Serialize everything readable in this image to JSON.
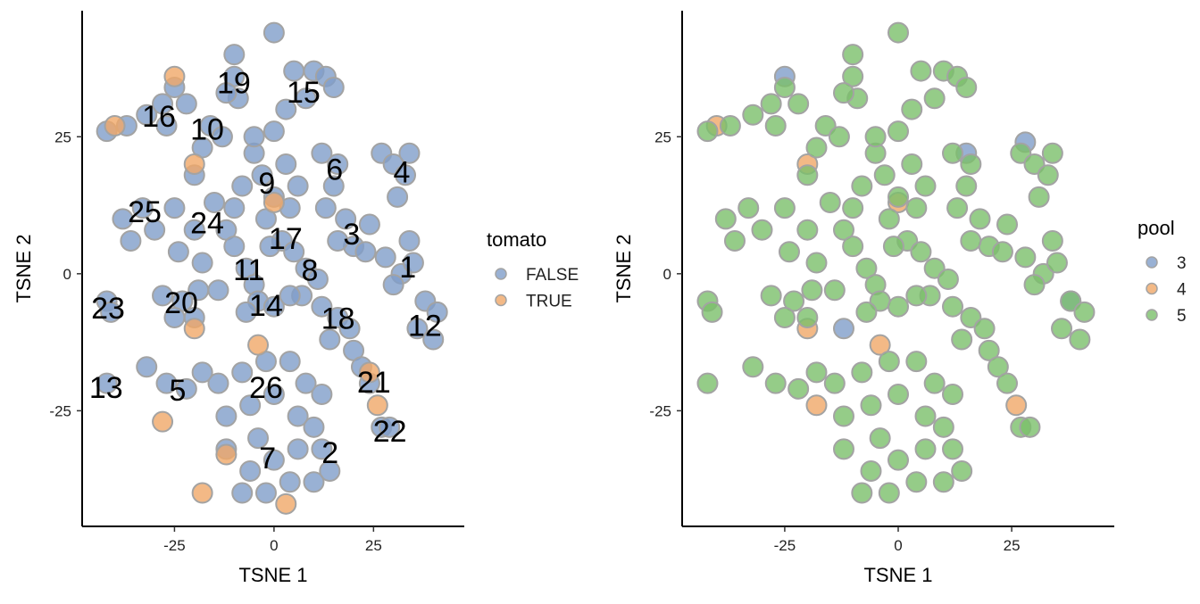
{
  "chart_data": [
    {
      "type": "scatter",
      "xlabel": "TSNE 1",
      "ylabel": "TSNE 2",
      "legend_title": "tomato",
      "xlim": [
        -48.2,
        47.8
      ],
      "ylim": [
        -46.1,
        48
      ],
      "xticks": [
        -25,
        0,
        25
      ],
      "yticks": [
        -25,
        0,
        25
      ],
      "grid": false,
      "legend": "right",
      "series": [
        {
          "name": "FALSE",
          "color": "#7f9dc9",
          "x": [
            -42,
            -37,
            -32,
            -28,
            -25,
            -27,
            -22,
            -10,
            -10,
            -9,
            -12,
            0,
            5,
            10,
            13,
            8,
            3,
            0,
            15,
            -16,
            -13,
            -18,
            -5,
            -3,
            0,
            3,
            -8,
            -2,
            4,
            6,
            -10,
            -5,
            -20,
            -15,
            -20,
            -12,
            -25,
            -24,
            -18,
            -10,
            -38,
            -33,
            -30,
            -36,
            2,
            5,
            -1,
            12,
            16,
            15,
            13,
            18,
            20,
            16,
            23,
            24,
            27,
            30,
            33,
            31,
            34,
            28,
            32,
            35,
            30,
            34,
            38,
            36,
            40,
            41,
            8,
            11,
            7,
            -7,
            -5,
            -4,
            0,
            4,
            -7,
            12,
            16,
            19,
            14,
            20,
            22,
            24,
            -28,
            -23,
            -19,
            -14,
            -25,
            -20,
            -42,
            -41,
            -42,
            -32,
            -27,
            -22,
            -18,
            -14,
            -8,
            -2,
            4,
            8,
            12,
            -6,
            0,
            6,
            -12,
            -4,
            10,
            -12,
            -6,
            0,
            4,
            -2,
            6,
            -8,
            12,
            14,
            10,
            27,
            29
          ],
          "y": [
            26,
            27,
            29,
            31,
            34,
            27,
            31,
            40,
            36,
            32,
            33,
            44,
            37,
            37,
            36,
            32,
            30,
            26,
            34,
            27,
            25,
            23,
            22,
            18,
            14,
            20,
            16,
            10,
            12,
            16,
            12,
            25,
            18,
            13,
            8,
            8,
            12,
            4,
            2,
            5,
            10,
            12,
            8,
            6,
            6,
            4,
            5,
            22,
            20,
            16,
            12,
            10,
            5,
            6,
            4,
            9,
            22,
            20,
            18,
            14,
            22,
            3,
            0,
            2,
            -2,
            6,
            -5,
            -10,
            -12,
            -7,
            1,
            -1,
            -4,
            1,
            -2,
            -5,
            -6,
            -4,
            -7,
            -6,
            -8,
            -10,
            -12,
            -14,
            -17,
            -20,
            -4,
            -5,
            -3,
            -3,
            -8,
            -8,
            -5,
            -7,
            -20,
            -17,
            -20,
            -21,
            -18,
            -20,
            -18,
            -16,
            -16,
            -20,
            -22,
            -24,
            -22,
            -26,
            -26,
            -30,
            -28,
            -32,
            -36,
            -34,
            -38,
            -40,
            -32,
            -40,
            -32,
            -36,
            -38,
            -28,
            -28
          ]
        },
        {
          "name": "TRUE",
          "color": "#f0a868",
          "x": [
            -25,
            -40,
            -20,
            0,
            -20,
            -12,
            -28,
            -4,
            26,
            24,
            -18,
            3
          ],
          "y": [
            36,
            27,
            20,
            13,
            -10,
            -33,
            -27,
            -13,
            -24,
            -18,
            -40,
            -42
          ]
        }
      ],
      "cluster_labels": [
        {
          "text": "19",
          "x": -10.1,
          "y": 34.9
        },
        {
          "text": "15",
          "x": 7.4,
          "y": 33.2
        },
        {
          "text": "16",
          "x": -28.9,
          "y": 28.8
        },
        {
          "text": "10",
          "x": -16.8,
          "y": 26.4
        },
        {
          "text": "6",
          "x": 15.2,
          "y": 19.1
        },
        {
          "text": "4",
          "x": 32.1,
          "y": 18.6
        },
        {
          "text": "9",
          "x": -1.8,
          "y": 16.6
        },
        {
          "text": "25",
          "x": -32.5,
          "y": 11.4
        },
        {
          "text": "24",
          "x": -16.8,
          "y": 9.3
        },
        {
          "text": "3",
          "x": 19.5,
          "y": 7.3
        },
        {
          "text": "17",
          "x": 2.9,
          "y": 6.5
        },
        {
          "text": "11",
          "x": -6.3,
          "y": 0.8
        },
        {
          "text": "8",
          "x": 9.0,
          "y": 0.7
        },
        {
          "text": "1",
          "x": 33.6,
          "y": 1.3
        },
        {
          "text": "23",
          "x": -41.7,
          "y": -6.2
        },
        {
          "text": "20",
          "x": -23.3,
          "y": -5.2
        },
        {
          "text": "14",
          "x": -2.0,
          "y": -5.7
        },
        {
          "text": "18",
          "x": 16.1,
          "y": -8.1
        },
        {
          "text": "12",
          "x": 37.9,
          "y": -9.4
        },
        {
          "text": "21",
          "x": 25.1,
          "y": -19.7
        },
        {
          "text": "13",
          "x": -42.2,
          "y": -20.7
        },
        {
          "text": "5",
          "x": -24.2,
          "y": -21.2
        },
        {
          "text": "26",
          "x": -2.0,
          "y": -20.7
        },
        {
          "text": "22",
          "x": 29.1,
          "y": -28.7
        },
        {
          "text": "7",
          "x": -1.6,
          "y": -33.6
        },
        {
          "text": "2",
          "x": 14.1,
          "y": -32.6
        }
      ]
    },
    {
      "type": "scatter",
      "xlabel": "TSNE 1",
      "ylabel": "TSNE 2",
      "legend_title": "pool",
      "xlim": [
        -47.6,
        47.6
      ],
      "ylim": [
        -46.1,
        48
      ],
      "xticks": [
        -25,
        0,
        25
      ],
      "yticks": [
        -25,
        0,
        25
      ],
      "grid": false,
      "legend": "right",
      "series": [
        {
          "name": "3",
          "color": "#7f9dc9",
          "x": [
            -25,
            15,
            38,
            -12,
            28
          ],
          "y": [
            36,
            22,
            -5,
            -10,
            24
          ]
        },
        {
          "name": "4",
          "color": "#f0a868",
          "x": [
            -20,
            -40,
            0,
            -20,
            -18,
            -4,
            26
          ],
          "y": [
            20,
            27,
            13,
            -10,
            -24,
            -13,
            -24
          ]
        },
        {
          "name": "5",
          "color": "#7bbf6a",
          "x": [
            -42,
            -37,
            -32,
            -28,
            -25,
            -27,
            -22,
            -10,
            -10,
            -9,
            -12,
            0,
            5,
            10,
            13,
            8,
            3,
            0,
            15,
            -16,
            -13,
            -18,
            -5,
            -3,
            0,
            3,
            -8,
            -2,
            4,
            6,
            -10,
            -5,
            -20,
            -15,
            -20,
            -12,
            -25,
            -24,
            -18,
            -10,
            -38,
            -33,
            -30,
            -36,
            2,
            5,
            -1,
            12,
            16,
            15,
            13,
            18,
            20,
            16,
            23,
            24,
            27,
            30,
            33,
            31,
            34,
            28,
            32,
            35,
            30,
            34,
            38,
            36,
            40,
            41,
            8,
            11,
            7,
            -7,
            -5,
            -4,
            0,
            4,
            -7,
            12,
            16,
            19,
            14,
            20,
            22,
            24,
            -28,
            -23,
            -19,
            -14,
            -25,
            -20,
            -42,
            -41,
            -42,
            -32,
            -27,
            -22,
            -18,
            -14,
            -8,
            -2,
            4,
            8,
            12,
            -6,
            0,
            6,
            -12,
            -4,
            10,
            -12,
            -6,
            0,
            4,
            -2,
            6,
            -8,
            12,
            14,
            10,
            27,
            29
          ],
          "y": [
            26,
            27,
            29,
            31,
            34,
            27,
            31,
            40,
            36,
            32,
            33,
            44,
            37,
            37,
            36,
            32,
            30,
            26,
            34,
            27,
            25,
            23,
            22,
            18,
            14,
            20,
            16,
            10,
            12,
            16,
            12,
            25,
            18,
            13,
            8,
            8,
            12,
            4,
            2,
            5,
            10,
            12,
            8,
            6,
            6,
            4,
            5,
            22,
            20,
            16,
            12,
            10,
            5,
            6,
            4,
            9,
            22,
            20,
            18,
            14,
            22,
            3,
            0,
            2,
            -2,
            6,
            -5,
            -10,
            -12,
            -7,
            1,
            -1,
            -4,
            1,
            -2,
            -5,
            -6,
            -4,
            -7,
            -6,
            -8,
            -10,
            -12,
            -14,
            -17,
            -20,
            -4,
            -5,
            -3,
            -3,
            -8,
            -8,
            -5,
            -7,
            -20,
            -17,
            -20,
            -21,
            -18,
            -20,
            -18,
            -16,
            -16,
            -20,
            -22,
            -24,
            -22,
            -26,
            -26,
            -30,
            -28,
            -32,
            -36,
            -34,
            -38,
            -40,
            -32,
            -40,
            -32,
            -36,
            -38,
            -28,
            -28
          ]
        }
      ]
    }
  ]
}
